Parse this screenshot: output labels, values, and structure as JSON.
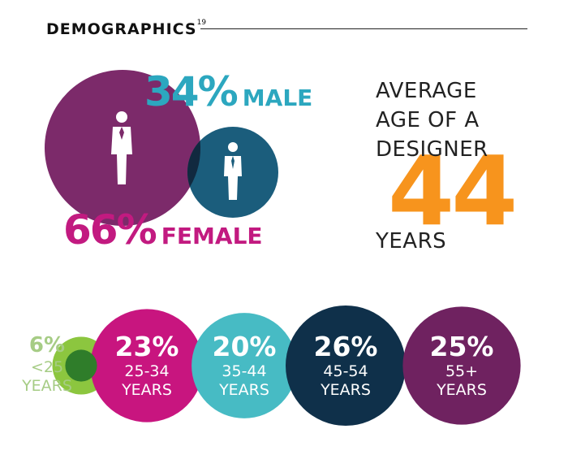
{
  "header": {
    "title": "DEMOGRAPHICS",
    "footnote": "19"
  },
  "gender": {
    "male_pct": "34%",
    "male_label": "MALE",
    "female_pct": "66%",
    "female_label": "FEMALE"
  },
  "average_age": {
    "lines": [
      "AVERAGE",
      "AGE OF A",
      "DESIGNER"
    ],
    "value": "44",
    "unit": "YEARS"
  },
  "colors": {
    "female": "#7c2a6a",
    "female_text": "#c21a80",
    "male": "#1b5d7c",
    "male_text": "#2ca7bf",
    "orange": "#f7941d",
    "lt25": "#8cc63f",
    "lt25_text": "#a6cc85",
    "a25_34": "#c8157f",
    "a35_44": "#47bbc4",
    "a45_54": "#0f304a",
    "a55": "#6f2260"
  },
  "chart_data": [
    {
      "type": "pie",
      "categories": [
        "MALE",
        "FEMALE"
      ],
      "values": [
        34,
        66
      ]
    },
    {
      "type": "bar",
      "categories": [
        "<25 YEARS",
        "25-34 YEARS",
        "35-44 YEARS",
        "45-54 YEARS",
        "55+ YEARS"
      ],
      "values": [
        6,
        23,
        20,
        26,
        25
      ],
      "labels": [
        {
          "pct": "6%",
          "range": "<25",
          "unit": "YEARS"
        },
        {
          "pct": "23%",
          "range": "25-34",
          "unit": "YEARS"
        },
        {
          "pct": "20%",
          "range": "35-44",
          "unit": "YEARS"
        },
        {
          "pct": "26%",
          "range": "45-54",
          "unit": "YEARS"
        },
        {
          "pct": "25%",
          "range": "55+",
          "unit": "YEARS"
        }
      ]
    }
  ]
}
